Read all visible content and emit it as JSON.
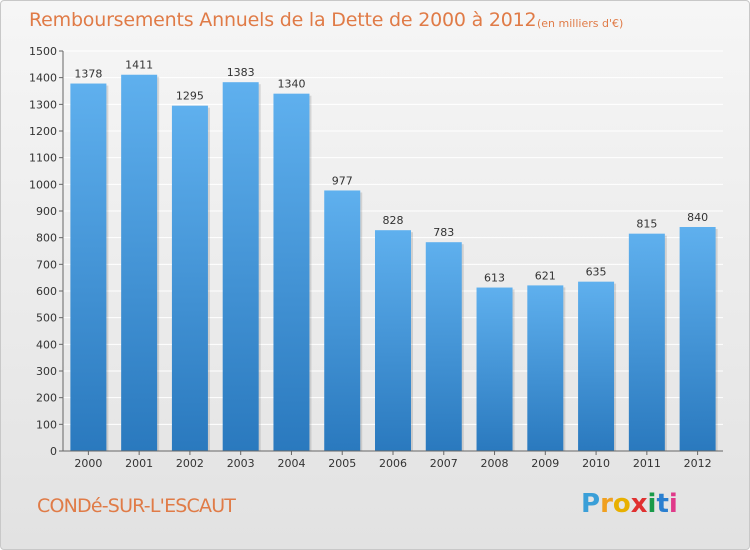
{
  "title": "Remboursements Annuels de la Dette de 2000 à 2012",
  "subtitle": "(en milliers d'€)",
  "town": "CONDé-SUR-L'ESCAUT",
  "logo": {
    "text": "Proxiti",
    "letter_colors": [
      "#3a9fd8",
      "#f0a020",
      "#e8b000",
      "#e03030",
      "#1a9a4a",
      "#2a7fd0",
      "#e03a8a"
    ]
  },
  "colors": {
    "title": "#e07b47",
    "bar_light": "#5fb0ee",
    "bar_dark": "#2a79be",
    "grid": "#ffffff",
    "axis": "#666666"
  },
  "chart_data": {
    "type": "bar",
    "title": "Remboursements Annuels de la Dette de 2000 à 2012",
    "xlabel": "",
    "ylabel": "",
    "categories": [
      "2000",
      "2001",
      "2002",
      "2003",
      "2004",
      "2005",
      "2006",
      "2007",
      "2008",
      "2009",
      "2010",
      "2011",
      "2012"
    ],
    "values": [
      1378,
      1411,
      1295,
      1383,
      1340,
      977,
      828,
      783,
      613,
      621,
      635,
      815,
      840
    ],
    "ylim": [
      0,
      1500
    ],
    "yticks": [
      0,
      100,
      200,
      300,
      400,
      500,
      600,
      700,
      800,
      900,
      1000,
      1100,
      1200,
      1300,
      1400,
      1500
    ],
    "grid": true
  }
}
